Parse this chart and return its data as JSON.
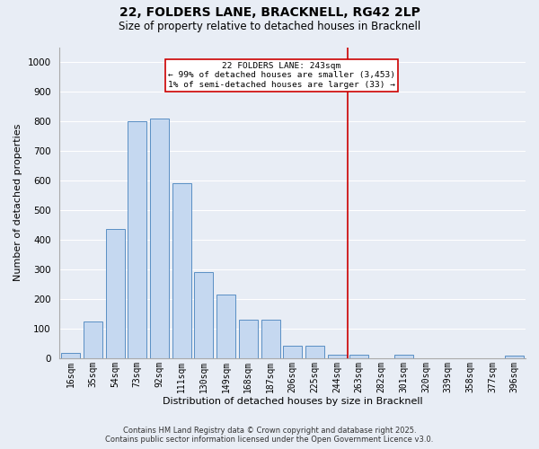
{
  "title": "22, FOLDERS LANE, BRACKNELL, RG42 2LP",
  "subtitle": "Size of property relative to detached houses in Bracknell",
  "xlabel": "Distribution of detached houses by size in Bracknell",
  "ylabel": "Number of detached properties",
  "categories": [
    "16sqm",
    "35sqm",
    "54sqm",
    "73sqm",
    "92sqm",
    "111sqm",
    "130sqm",
    "149sqm",
    "168sqm",
    "187sqm",
    "206sqm",
    "225sqm",
    "244sqm",
    "263sqm",
    "282sqm",
    "301sqm",
    "320sqm",
    "339sqm",
    "358sqm",
    "377sqm",
    "396sqm"
  ],
  "values": [
    18,
    125,
    435,
    800,
    810,
    590,
    290,
    215,
    130,
    130,
    42,
    42,
    12,
    12,
    0,
    12,
    0,
    0,
    0,
    0,
    8
  ],
  "bar_color": "#c5d8f0",
  "bar_edge_color": "#5a8fc4",
  "background_color": "#e8edf5",
  "grid_color": "#ffffff",
  "vline_x_index": 13,
  "annotation_line1": "22 FOLDERS LANE: 243sqm",
  "annotation_line2": "← 99% of detached houses are smaller (3,453)",
  "annotation_line3": "1% of semi-detached houses are larger (33) →",
  "annotation_box_color": "#cc0000",
  "vline_color": "#cc0000",
  "ylim": [
    0,
    1050
  ],
  "yticks": [
    0,
    100,
    200,
    300,
    400,
    500,
    600,
    700,
    800,
    900,
    1000
  ],
  "footnote1": "Contains HM Land Registry data © Crown copyright and database right 2025.",
  "footnote2": "Contains public sector information licensed under the Open Government Licence v3.0."
}
